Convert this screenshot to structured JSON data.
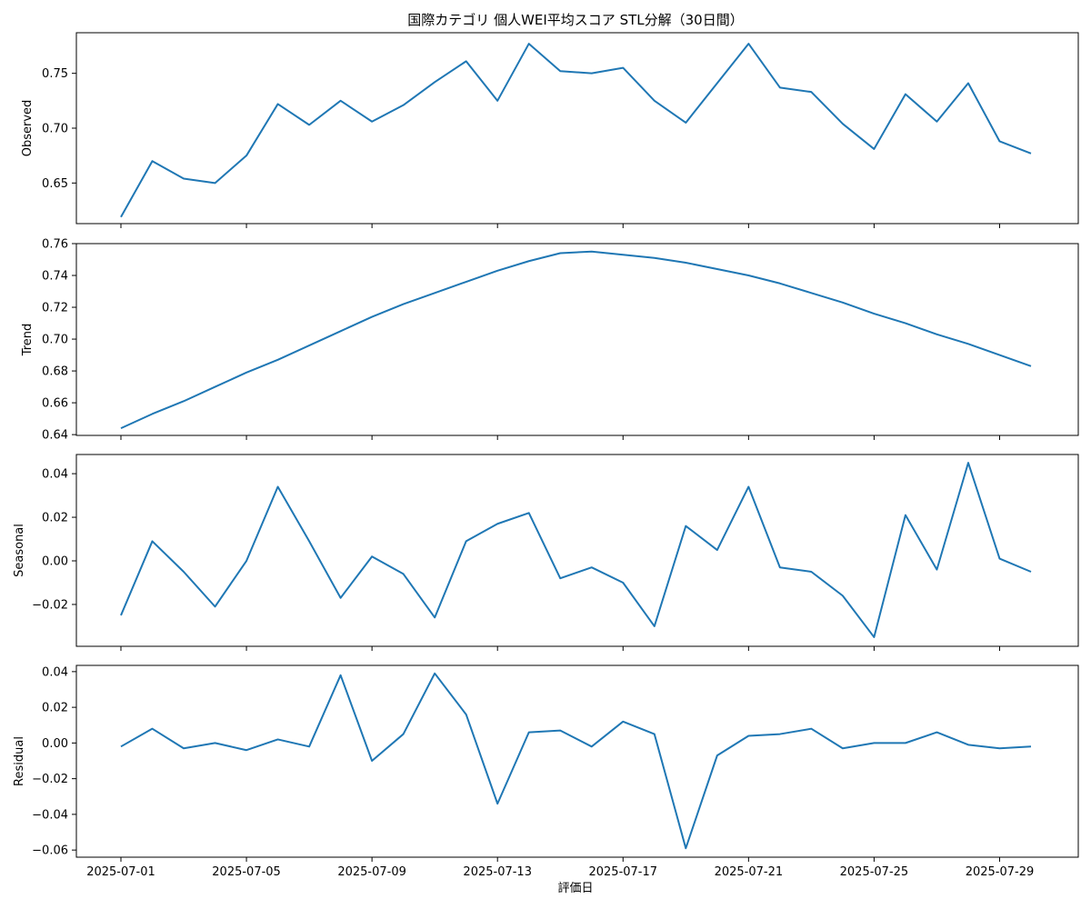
{
  "chart_data": {
    "type": "line",
    "title": "国際カテゴリ 個人WEI平均スコア STL分解（30日間）",
    "xlabel": "評価日",
    "x": [
      "2025-07-01",
      "2025-07-02",
      "2025-07-03",
      "2025-07-04",
      "2025-07-05",
      "2025-07-06",
      "2025-07-07",
      "2025-07-08",
      "2025-07-09",
      "2025-07-10",
      "2025-07-11",
      "2025-07-12",
      "2025-07-13",
      "2025-07-14",
      "2025-07-15",
      "2025-07-16",
      "2025-07-17",
      "2025-07-18",
      "2025-07-19",
      "2025-07-20",
      "2025-07-21",
      "2025-07-22",
      "2025-07-23",
      "2025-07-24",
      "2025-07-25",
      "2025-07-26",
      "2025-07-27",
      "2025-07-28",
      "2025-07-29",
      "2025-07-30"
    ],
    "x_tick_labels": [
      "2025-07-01",
      "2025-07-05",
      "2025-07-09",
      "2025-07-13",
      "2025-07-17",
      "2025-07-21",
      "2025-07-25",
      "2025-07-29"
    ],
    "line_color": "#1f77b4",
    "grid": false,
    "panels": [
      {
        "ylabel": "Observed",
        "ylim": [
          0.613,
          0.787
        ],
        "yticks": [
          "0.65",
          "0.70",
          "0.75"
        ],
        "values": [
          0.619,
          0.67,
          0.654,
          0.65,
          0.675,
          0.722,
          0.703,
          0.725,
          0.706,
          0.721,
          0.742,
          0.761,
          0.725,
          0.777,
          0.752,
          0.75,
          0.755,
          0.725,
          0.705,
          0.741,
          0.777,
          0.737,
          0.733,
          0.704,
          0.681,
          0.731,
          0.706,
          0.741,
          0.688,
          0.677
        ]
      },
      {
        "ylabel": "Trend",
        "ylim": [
          0.6395,
          0.76
        ],
        "yticks": [
          "0.64",
          "0.66",
          "0.68",
          "0.70",
          "0.72",
          "0.74",
          "0.76"
        ],
        "values": [
          0.644,
          0.653,
          0.661,
          0.67,
          0.679,
          0.687,
          0.696,
          0.705,
          0.714,
          0.722,
          0.729,
          0.736,
          0.743,
          0.749,
          0.754,
          0.755,
          0.753,
          0.751,
          0.748,
          0.744,
          0.74,
          0.735,
          0.729,
          0.723,
          0.716,
          0.71,
          0.703,
          0.697,
          0.69,
          0.683
        ]
      },
      {
        "ylabel": "Seasonal",
        "ylim": [
          -0.0392,
          0.0488
        ],
        "yticks": [
          "−0.02",
          "0.00",
          "0.02",
          "0.04"
        ],
        "values": [
          -0.025,
          0.009,
          -0.005,
          -0.021,
          0.0,
          0.034,
          0.009,
          -0.017,
          0.002,
          -0.006,
          -0.026,
          0.009,
          0.017,
          0.022,
          -0.008,
          -0.003,
          -0.01,
          -0.03,
          0.016,
          0.005,
          0.034,
          -0.003,
          -0.005,
          -0.016,
          -0.035,
          0.021,
          -0.004,
          0.045,
          0.001,
          -0.005
        ]
      },
      {
        "ylabel": "Residual",
        "ylim": [
          -0.064,
          0.0435
        ],
        "yticks": [
          "−0.06",
          "−0.04",
          "−0.02",
          "0.00",
          "0.02",
          "0.04"
        ],
        "values": [
          -0.002,
          0.008,
          -0.003,
          0.0,
          -0.004,
          0.002,
          -0.002,
          0.038,
          -0.01,
          0.005,
          0.039,
          0.016,
          -0.034,
          0.006,
          0.007,
          -0.002,
          0.012,
          0.005,
          -0.059,
          -0.007,
          0.004,
          0.005,
          0.008,
          -0.003,
          0.0,
          0.0,
          0.006,
          -0.001,
          -0.003,
          -0.002
        ]
      }
    ]
  }
}
